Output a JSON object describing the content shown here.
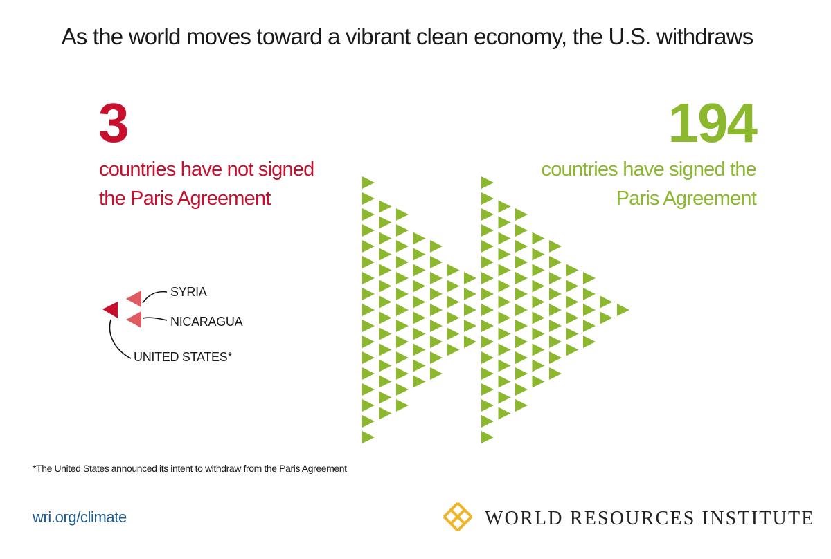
{
  "headline": "As the world moves toward a vibrant clean economy, the U.S. withdraws",
  "not_signed": {
    "count": "3",
    "caption_line1": "countries have not signed",
    "caption_line2": "the Paris Agreement",
    "color": "#c8102e",
    "countries": [
      {
        "label": "SYRIA"
      },
      {
        "label": "NICARAGUA"
      },
      {
        "label": "UNITED STATES*"
      }
    ]
  },
  "signed": {
    "count": "194",
    "caption_line1": "countries have signed the",
    "caption_line2": "Paris Agreement",
    "color": "#8cb82e"
  },
  "footnote": "*The United States announced its intent to withdraw from the Paris Agreement",
  "footer": {
    "link": "wri.org/climate",
    "org_name": "WORLD RESOURCES INSTITUTE",
    "logo_icon": "wri-logo-icon",
    "logo_color": "#f0b429"
  }
}
